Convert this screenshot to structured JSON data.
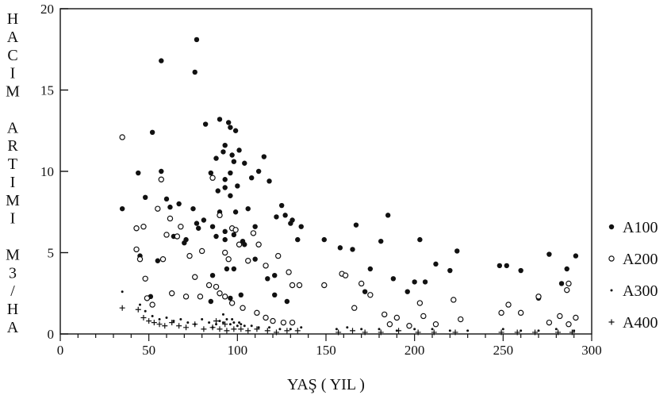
{
  "chart_data": {
    "type": "scatter",
    "title": "",
    "xlabel": "YAŞ ( YIL )",
    "ylabel": "HACIM ARTIMI M3/HA",
    "ylabel_lines": [
      "H",
      "A",
      "C",
      "I",
      "M",
      "",
      "A",
      "R",
      "T",
      "I",
      "M",
      "I",
      "",
      "M",
      "3",
      "/",
      "H",
      "A"
    ],
    "xlim": [
      0,
      300
    ],
    "ylim": [
      0,
      20
    ],
    "xticks": [
      0,
      50,
      100,
      150,
      200,
      250,
      300
    ],
    "yticks": [
      0,
      5,
      10,
      15,
      20
    ],
    "grid": false,
    "legend_position": "right",
    "series": [
      {
        "name": "A100",
        "marker": "filled-circle",
        "x": [
          77,
          57,
          76,
          52,
          82,
          90,
          95,
          96,
          99,
          101,
          93,
          97,
          92,
          88,
          115,
          98,
          104,
          112,
          108,
          93,
          96,
          100,
          44,
          57,
          85,
          93,
          118,
          89,
          96,
          60,
          67,
          62,
          75,
          106,
          125,
          48,
          90,
          99,
          122,
          127,
          81,
          77,
          86,
          131,
          130,
          110,
          136,
          93,
          98,
          88,
          78,
          103,
          149,
          158,
          167,
          185,
          181,
          203,
          200,
          175,
          188,
          93,
          220,
          212,
          224,
          248,
          252,
          260,
          276,
          283,
          286,
          291,
          35,
          45,
          51,
          71,
          104,
          110,
          117,
          121,
          98,
          86,
          94,
          70,
          64,
          55,
          85,
          96,
          102,
          134,
          121,
          128,
          165,
          172,
          196,
          206,
          270
        ],
        "y": [
          18.1,
          16.8,
          16.1,
          12.4,
          12.9,
          13.2,
          13.0,
          12.7,
          12.5,
          11.3,
          11.6,
          11.0,
          11.2,
          10.8,
          10.9,
          10.6,
          10.5,
          10.0,
          9.6,
          9.5,
          9.9,
          9.1,
          9.9,
          10.0,
          9.9,
          9.0,
          9.4,
          8.8,
          8.5,
          8.3,
          8.0,
          7.8,
          7.7,
          7.7,
          7.9,
          8.4,
          7.5,
          7.5,
          7.2,
          7.3,
          7.0,
          6.8,
          6.6,
          7.0,
          6.8,
          6.6,
          6.6,
          6.3,
          6.1,
          6.0,
          6.5,
          5.7,
          5.8,
          5.3,
          6.7,
          7.3,
          5.7,
          5.8,
          3.2,
          4.0,
          3.4,
          5.8,
          3.9,
          4.3,
          5.1,
          4.2,
          4.2,
          3.9,
          4.9,
          3.1,
          4.0,
          4.8,
          7.7,
          4.8,
          2.3,
          5.8,
          5.5,
          4.6,
          3.4,
          3.6,
          4.0,
          3.6,
          4.0,
          5.6,
          6.0,
          4.5,
          2.0,
          2.2,
          2.4,
          5.8,
          2.4,
          2.0,
          5.2,
          2.6,
          2.6,
          3.2,
          2.2
        ]
      },
      {
        "name": "A200",
        "marker": "open-circle",
        "x": [
          35,
          43,
          47,
          43,
          45,
          48,
          55,
          57,
          60,
          58,
          62,
          66,
          68,
          73,
          80,
          86,
          90,
          93,
          95,
          97,
          99,
          101,
          106,
          109,
          112,
          116,
          123,
          129,
          131,
          135,
          149,
          159,
          161,
          166,
          170,
          175,
          183,
          190,
          203,
          205,
          222,
          226,
          249,
          253,
          260,
          270,
          276,
          282,
          286,
          287,
          291,
          49,
          52,
          63,
          71,
          76,
          79,
          84,
          88,
          90,
          93,
          97,
          103,
          111,
          116,
          120,
          126,
          131,
          186,
          197,
          212,
          287
        ],
        "y": [
          12.1,
          6.5,
          6.6,
          5.2,
          4.6,
          3.4,
          7.7,
          9.5,
          6.1,
          4.6,
          7.1,
          6.0,
          6.6,
          4.8,
          5.1,
          9.6,
          7.3,
          5.0,
          4.6,
          6.5,
          6.4,
          5.5,
          4.5,
          6.2,
          5.5,
          4.2,
          4.8,
          3.8,
          3.0,
          3.0,
          3.0,
          3.7,
          3.6,
          1.6,
          3.1,
          2.4,
          1.2,
          1.0,
          1.9,
          1.1,
          2.1,
          0.9,
          1.3,
          1.8,
          1.3,
          2.3,
          0.7,
          1.1,
          2.7,
          3.1,
          1.0,
          2.2,
          1.8,
          2.5,
          2.3,
          3.5,
          2.3,
          3.0,
          2.9,
          2.5,
          2.3,
          1.9,
          1.6,
          1.3,
          1.0,
          0.8,
          0.7,
          0.7,
          0.6,
          0.5,
          0.6,
          0.6
        ]
      },
      {
        "name": "A300",
        "marker": "small-dot",
        "x": [
          35,
          45,
          48,
          52,
          56,
          60,
          64,
          68,
          72,
          76,
          80,
          84,
          88,
          90,
          92,
          94,
          96,
          98,
          100,
          102,
          104,
          108,
          112,
          118,
          124,
          130,
          136,
          156,
          162,
          170,
          180,
          190,
          200,
          210,
          220,
          230,
          250,
          260,
          270,
          280,
          290,
          86,
          92,
          97,
          101
        ],
        "y": [
          2.6,
          1.8,
          1.4,
          1.1,
          0.9,
          1.0,
          0.8,
          0.9,
          0.7,
          0.6,
          0.9,
          0.7,
          0.6,
          0.8,
          0.7,
          0.9,
          0.6,
          0.7,
          0.5,
          0.6,
          0.5,
          0.5,
          0.4,
          0.4,
          0.3,
          0.3,
          0.4,
          0.3,
          0.4,
          0.3,
          0.3,
          0.2,
          0.3,
          0.3,
          0.2,
          0.2,
          0.3,
          0.2,
          0.2,
          0.3,
          0.2,
          0.4,
          1.2,
          0.9,
          0.7
        ]
      },
      {
        "name": "A400",
        "marker": "plus",
        "x": [
          35,
          44,
          47,
          50,
          53,
          56,
          59,
          63,
          67,
          71,
          76,
          81,
          86,
          90,
          94,
          98,
          102,
          106,
          111,
          117,
          122,
          128,
          134,
          157,
          165,
          172,
          181,
          191,
          202,
          211,
          223,
          249,
          258,
          268,
          281,
          289,
          88,
          93
        ],
        "y": [
          1.6,
          1.5,
          1.0,
          0.8,
          0.7,
          0.6,
          0.5,
          0.7,
          0.5,
          0.4,
          0.6,
          0.3,
          0.4,
          0.3,
          0.2,
          0.3,
          0.3,
          0.2,
          0.3,
          0.2,
          0.1,
          0.2,
          0.2,
          0.1,
          0.2,
          0.1,
          0.1,
          0.2,
          0.1,
          0.1,
          0.1,
          0.1,
          0.1,
          0.1,
          0.1,
          0.1,
          0.8,
          0.6
        ]
      }
    ]
  }
}
